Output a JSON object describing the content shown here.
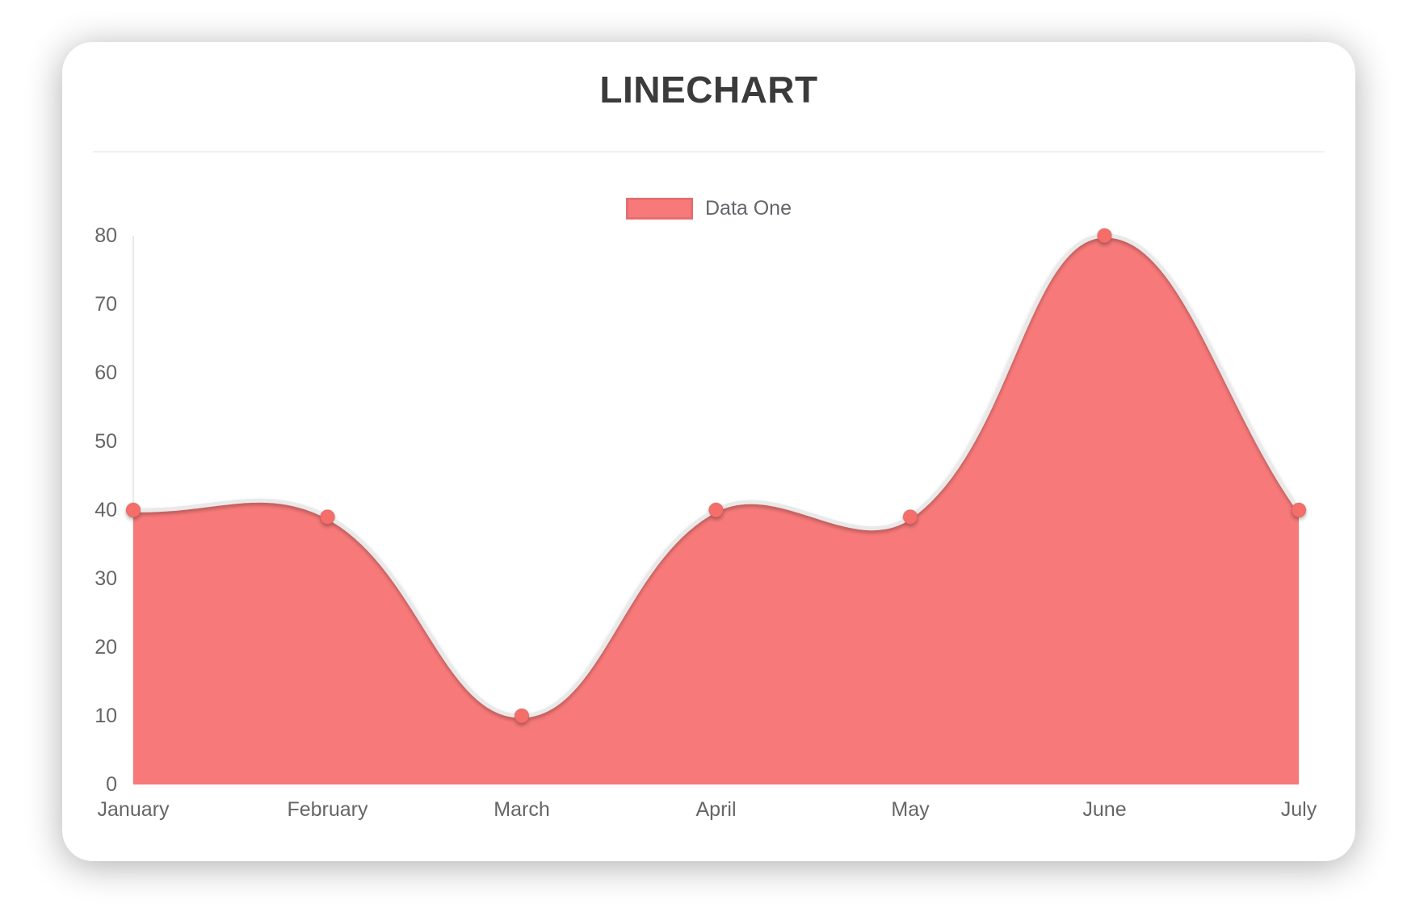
{
  "page": {
    "background": "#ffffff"
  },
  "chart_data": {
    "type": "line",
    "title": "LINECHART",
    "x": [
      "January",
      "February",
      "March",
      "April",
      "May",
      "June",
      "July"
    ],
    "series": [
      {
        "name": "Data One",
        "values": [
          40,
          39,
          10,
          40,
          39,
          80,
          40
        ]
      }
    ],
    "ylim": [
      0,
      80
    ],
    "y_ticks": [
      0,
      10,
      20,
      30,
      40,
      50,
      60,
      70,
      80
    ],
    "legend_position": "top-center",
    "grid": false,
    "area_fill": true,
    "curve_tension": 0.4,
    "colors": {
      "area": "#f87979",
      "line": "#e9e9e9",
      "point": "#f66e6b",
      "axis_line": "#e9e9e9",
      "tick_text": "#666666",
      "title_text": "#3b3b3b",
      "legend_text": "#63666a",
      "card_background": "#ffffff"
    }
  }
}
